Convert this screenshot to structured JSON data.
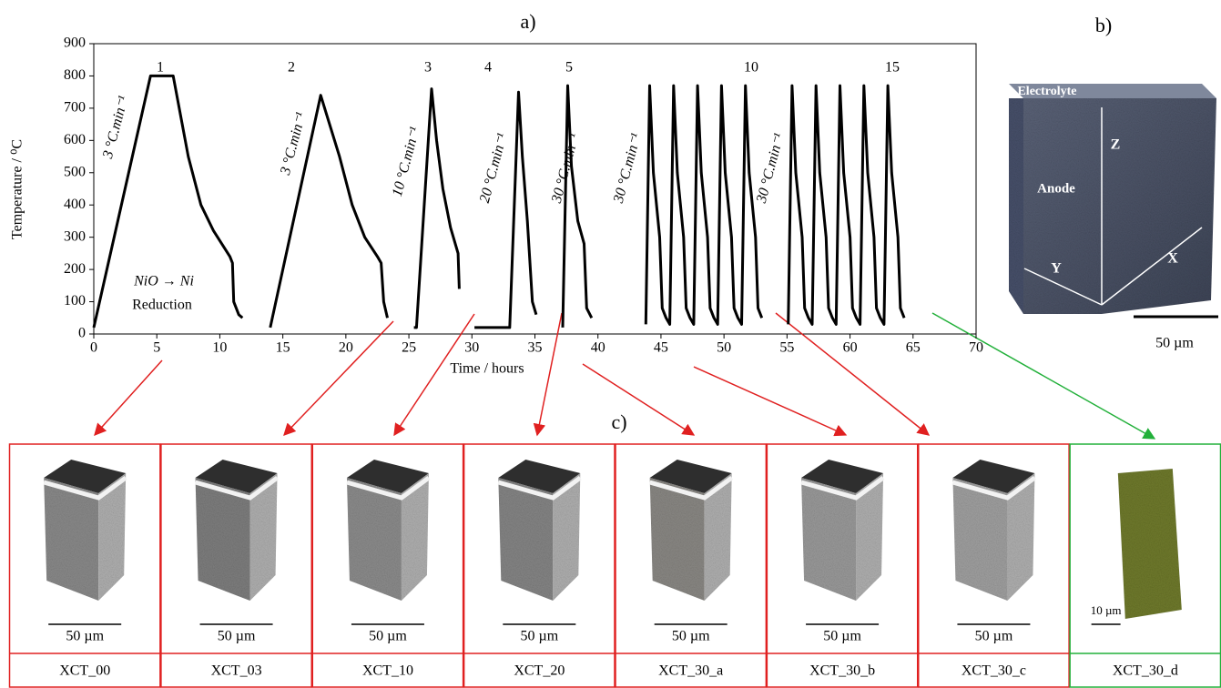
{
  "chart_data": {
    "type": "line",
    "title": "a)",
    "x_label": "Time / hours",
    "y_label": "Temperature / ⁰C",
    "color": "#000000",
    "xlim": [
      0,
      70
    ],
    "ylim": [
      0,
      900
    ],
    "xticks": [
      0,
      5,
      10,
      15,
      20,
      25,
      30,
      35,
      40,
      45,
      50,
      55,
      60,
      65,
      70
    ],
    "yticks": [
      0,
      100,
      200,
      300,
      400,
      500,
      600,
      700,
      800,
      900
    ],
    "x": [
      0,
      4.5,
      6.3,
      7.5,
      8.5,
      9.5,
      10.8,
      11,
      11.1,
      11.5,
      11.8,
      null,
      14,
      18,
      19.5,
      20.5,
      21.5,
      22.5,
      22.8,
      23,
      23.3,
      null,
      25.4,
      25.6,
      26.8,
      27.2,
      27.7,
      28.3,
      28.9,
      29,
      null,
      30.2,
      33.0,
      33.7,
      34.0,
      34.4,
      34.8,
      35.1,
      null,
      37.2,
      37.6,
      37.9,
      38.4,
      38.9,
      39.1,
      39.5,
      null,
      43.8,
      44.1,
      44.4,
      44.9,
      45.1,
      45.4,
      45.7,
      46.0,
      46.3,
      46.8,
      47.0,
      47.3,
      47.6,
      47.9,
      48.2,
      48.7,
      48.9,
      49.2,
      49.5,
      49.8,
      50.1,
      50.6,
      50.8,
      51.1,
      51.4,
      51.7,
      52.0,
      52.5,
      52.7,
      53.0,
      null,
      55.1,
      55.4,
      55.7,
      56.2,
      56.4,
      56.7,
      57.0,
      57.3,
      57.6,
      58.1,
      58.3,
      58.6,
      58.9,
      59.2,
      59.5,
      60.0,
      60.2,
      60.5,
      60.8,
      61.1,
      61.4,
      61.9,
      62.1,
      62.4,
      62.7,
      63.0,
      63.3,
      63.8,
      64.0,
      64.3
    ],
    "values": [
      20,
      800,
      800,
      550,
      400,
      320,
      240,
      220,
      100,
      60,
      50,
      null,
      20,
      740,
      550,
      400,
      300,
      240,
      220,
      100,
      50,
      null,
      20,
      20,
      760,
      600,
      450,
      330,
      250,
      140,
      null,
      20,
      20,
      750,
      550,
      350,
      100,
      60,
      null,
      20,
      770,
      520,
      350,
      280,
      80,
      50,
      null,
      30,
      770,
      500,
      300,
      80,
      50,
      30,
      770,
      500,
      300,
      80,
      50,
      30,
      770,
      500,
      300,
      80,
      50,
      30,
      770,
      500,
      300,
      80,
      50,
      30,
      770,
      500,
      300,
      80,
      50,
      null,
      30,
      770,
      500,
      300,
      80,
      50,
      30,
      770,
      500,
      300,
      80,
      50,
      30,
      770,
      500,
      300,
      80,
      50,
      30,
      770,
      500,
      300,
      80,
      50,
      30,
      770,
      500,
      300,
      80,
      50
    ],
    "cycle_labels": [
      "1",
      "2",
      "3",
      "4",
      "5",
      "10",
      "15"
    ],
    "rate_labels": [
      "3 °C.min⁻¹",
      "3 °C.min⁻¹",
      "10 °C.min⁻¹",
      "20 °C.min⁻¹",
      "30 °C.min⁻¹",
      "30 °C.min⁻¹",
      "30 °C.min⁻¹"
    ],
    "reaction": "NiO  → Ni",
    "reaction_note": "Reduction"
  },
  "panel_b": {
    "label": "b)",
    "electrolyte": "Electrolyte",
    "anode": "Anode",
    "axis_z": "Z",
    "axis_x": "X",
    "axis_y": "Y",
    "scale": "50 µm"
  },
  "panel_c": {
    "label": "c)",
    "samples": [
      {
        "name": "XCT_00",
        "scale": "50 µm"
      },
      {
        "name": "XCT_03",
        "scale": "50 µm"
      },
      {
        "name": "XCT_10",
        "scale": "50 µm"
      },
      {
        "name": "XCT_20",
        "scale": "50 µm"
      },
      {
        "name": "XCT_30_a",
        "scale": "50 µm"
      },
      {
        "name": "XCT_30_b",
        "scale": "50 µm"
      },
      {
        "name": "XCT_30_c",
        "scale": "50 µm"
      },
      {
        "name": "XCT_30_d",
        "scale": "10 µm"
      }
    ]
  }
}
